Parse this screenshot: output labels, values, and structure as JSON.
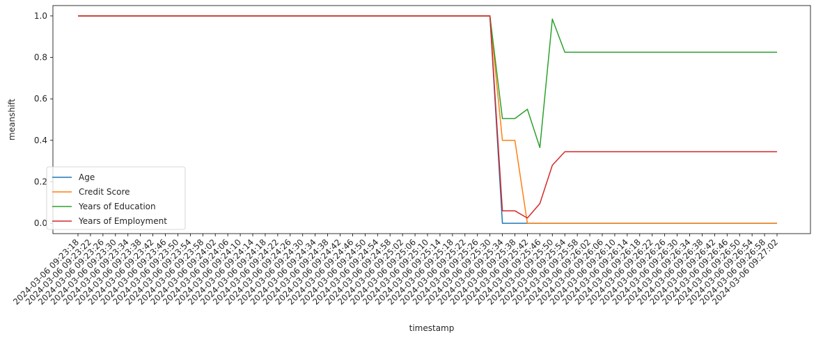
{
  "chart_data": {
    "type": "line",
    "xlabel": "timestamp",
    "ylabel": "meanshift",
    "ylim": [
      -0.05,
      1.05
    ],
    "yticks": [
      0.0,
      0.2,
      0.4,
      0.6,
      0.8,
      1.0
    ],
    "ytick_labels": [
      "0.0",
      "0.2",
      "0.4",
      "0.6",
      "0.8",
      "1.0"
    ],
    "grid": false,
    "legend_position": "lower-left",
    "categories": [
      "2024-03-06 09:23:18",
      "2024-03-06 09:23:22",
      "2024-03-06 09:23:26",
      "2024-03-06 09:23:30",
      "2024-03-06 09:23:34",
      "2024-03-06 09:23:38",
      "2024-03-06 09:23:42",
      "2024-03-06 09:23:46",
      "2024-03-06 09:23:50",
      "2024-03-06 09:23:54",
      "2024-03-06 09:23:58",
      "2024-03-06 09:24:02",
      "2024-03-06 09:24:06",
      "2024-03-06 09:24:10",
      "2024-03-06 09:24:14",
      "2024-03-06 09:24:18",
      "2024-03-06 09:24:22",
      "2024-03-06 09:24:26",
      "2024-03-06 09:24:30",
      "2024-03-06 09:24:34",
      "2024-03-06 09:24:38",
      "2024-03-06 09:24:42",
      "2024-03-06 09:24:46",
      "2024-03-06 09:24:50",
      "2024-03-06 09:24:54",
      "2024-03-06 09:24:58",
      "2024-03-06 09:25:02",
      "2024-03-06 09:25:06",
      "2024-03-06 09:25:10",
      "2024-03-06 09:25:14",
      "2024-03-06 09:25:18",
      "2024-03-06 09:25:22",
      "2024-03-06 09:25:26",
      "2024-03-06 09:25:30",
      "2024-03-06 09:25:34",
      "2024-03-06 09:25:38",
      "2024-03-06 09:25:42",
      "2024-03-06 09:25:46",
      "2024-03-06 09:25:50",
      "2024-03-06 09:25:54",
      "2024-03-06 09:25:58",
      "2024-03-06 09:26:02",
      "2024-03-06 09:26:06",
      "2024-03-06 09:26:10",
      "2024-03-06 09:26:14",
      "2024-03-06 09:26:18",
      "2024-03-06 09:26:22",
      "2024-03-06 09:26:26",
      "2024-03-06 09:26:30",
      "2024-03-06 09:26:34",
      "2024-03-06 09:26:38",
      "2024-03-06 09:26:42",
      "2024-03-06 09:26:46",
      "2024-03-06 09:26:50",
      "2024-03-06 09:26:54",
      "2024-03-06 09:26:58",
      "2024-03-06 09:27:02"
    ],
    "series": [
      {
        "name": "Age",
        "color": "#1f77b4",
        "values": [
          1,
          1,
          1,
          1,
          1,
          1,
          1,
          1,
          1,
          1,
          1,
          1,
          1,
          1,
          1,
          1,
          1,
          1,
          1,
          1,
          1,
          1,
          1,
          1,
          1,
          1,
          1,
          1,
          1,
          1,
          1,
          1,
          1,
          1,
          0,
          0,
          0,
          0,
          0,
          0,
          0,
          0,
          0,
          0,
          0,
          0,
          0,
          0,
          0,
          0,
          0,
          0,
          0,
          0,
          0,
          0,
          0
        ]
      },
      {
        "name": "Credit Score",
        "color": "#ff7f0e",
        "values": [
          1,
          1,
          1,
          1,
          1,
          1,
          1,
          1,
          1,
          1,
          1,
          1,
          1,
          1,
          1,
          1,
          1,
          1,
          1,
          1,
          1,
          1,
          1,
          1,
          1,
          1,
          1,
          1,
          1,
          1,
          1,
          1,
          1,
          1,
          0.4,
          0.4,
          0,
          0,
          0,
          0,
          0,
          0,
          0,
          0,
          0,
          0,
          0,
          0,
          0,
          0,
          0,
          0,
          0,
          0,
          0,
          0,
          0
        ]
      },
      {
        "name": "Years of Education",
        "color": "#2ca02c",
        "values": [
          1,
          1,
          1,
          1,
          1,
          1,
          1,
          1,
          1,
          1,
          1,
          1,
          1,
          1,
          1,
          1,
          1,
          1,
          1,
          1,
          1,
          1,
          1,
          1,
          1,
          1,
          1,
          1,
          1,
          1,
          1,
          1,
          1,
          1,
          0.505,
          0.505,
          0.55,
          0.365,
          0.985,
          0.825,
          0.825,
          0.825,
          0.825,
          0.825,
          0.825,
          0.825,
          0.825,
          0.825,
          0.825,
          0.825,
          0.825,
          0.825,
          0.825,
          0.825,
          0.825,
          0.825,
          0.825
        ]
      },
      {
        "name": "Years of Employment",
        "color": "#d62728",
        "values": [
          1,
          1,
          1,
          1,
          1,
          1,
          1,
          1,
          1,
          1,
          1,
          1,
          1,
          1,
          1,
          1,
          1,
          1,
          1,
          1,
          1,
          1,
          1,
          1,
          1,
          1,
          1,
          1,
          1,
          1,
          1,
          1,
          1,
          1,
          0.06,
          0.06,
          0.025,
          0.095,
          0.28,
          0.345,
          0.345,
          0.345,
          0.345,
          0.345,
          0.345,
          0.345,
          0.345,
          0.345,
          0.345,
          0.345,
          0.345,
          0.345,
          0.345,
          0.345,
          0.345,
          0.345,
          0.345
        ]
      }
    ]
  }
}
